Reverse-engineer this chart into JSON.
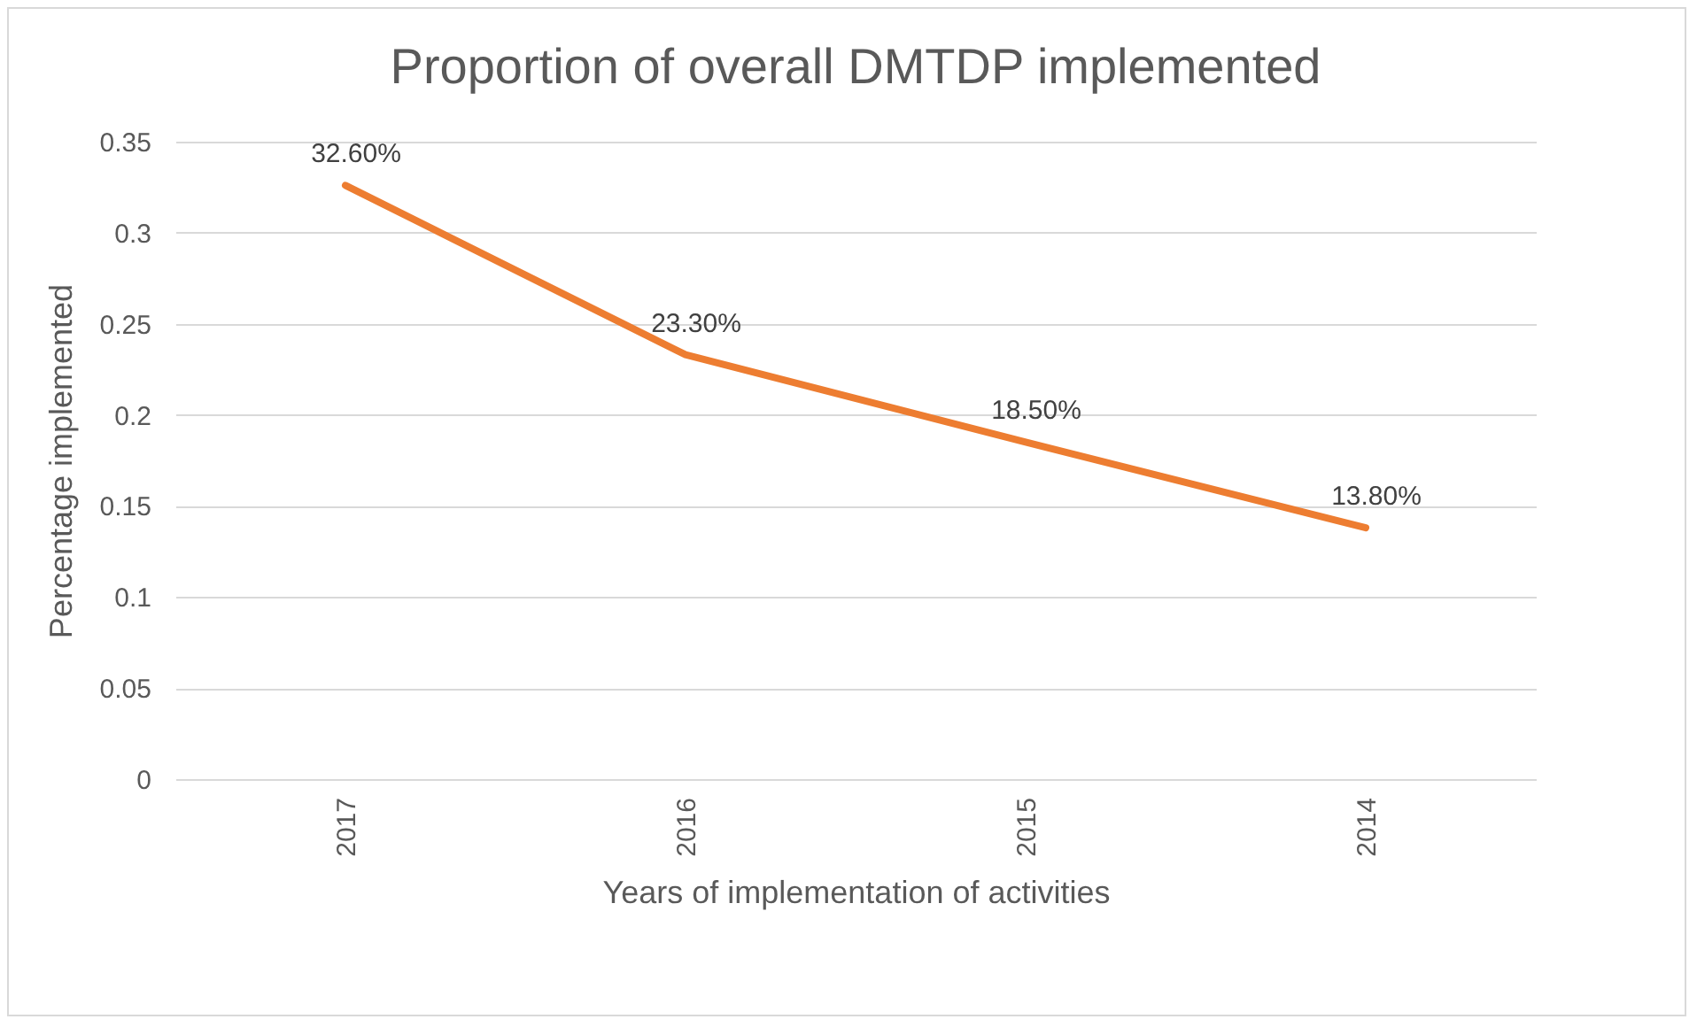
{
  "chart_data": {
    "type": "line",
    "title": "Proportion of overall DMTDP implemented",
    "xlabel": "Years of implementation of activities",
    "ylabel": "Percentage implemented",
    "categories": [
      "2017",
      "2016",
      "2015",
      "2014"
    ],
    "series": [
      {
        "color": "#ed7d31",
        "values": [
          0.326,
          0.233,
          0.185,
          0.138
        ],
        "value_labels": [
          "32.60%",
          "23.30%",
          "18.50%",
          "13.80%"
        ]
      }
    ],
    "ylim": [
      0,
      0.35
    ],
    "yticks": [
      0,
      0.05,
      0.1,
      0.15,
      0.2,
      0.25,
      0.3,
      0.35
    ],
    "grid": "y"
  }
}
